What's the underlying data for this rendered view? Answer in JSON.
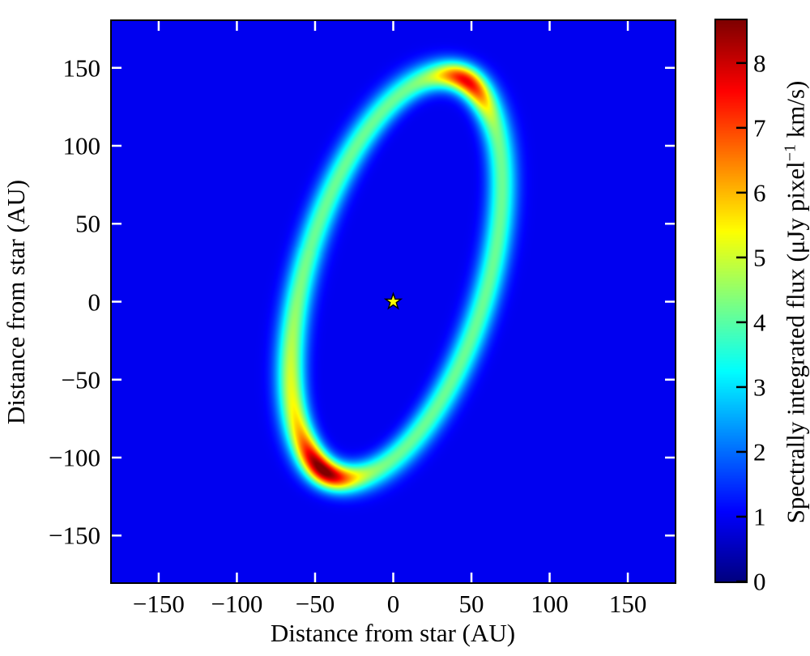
{
  "chart_data": {
    "type": "heatmap",
    "xlabel": "Distance from star (AU)",
    "ylabel": "Distance from star (AU)",
    "xlim": [
      -180,
      180
    ],
    "ylim": [
      -180,
      180
    ],
    "xticks": [
      "−150",
      "−100",
      "−50",
      "0",
      "50",
      "100",
      "150"
    ],
    "xtick_values": [
      -150,
      -100,
      -50,
      0,
      50,
      100,
      150
    ],
    "yticks": [
      "150",
      "100",
      "50",
      "0",
      "−50",
      "−100",
      "−150"
    ],
    "ytick_values": [
      150,
      100,
      50,
      0,
      -50,
      -100,
      -150
    ],
    "colormap": "jet",
    "clim": [
      0,
      8.66
    ],
    "colorbar": {
      "label_main": "Spectrally integrated flux (μJy pixel",
      "label_sup": "−1",
      "label_end": " km/s)",
      "ticks": [
        "0",
        "1",
        "2",
        "3",
        "4",
        "5",
        "6",
        "7",
        "8"
      ],
      "tick_values": [
        0,
        1,
        2,
        3,
        4,
        5,
        6,
        7,
        8
      ]
    },
    "background_color": "#00007f",
    "star_marker": {
      "x": 0,
      "y": 0,
      "color": "#ffff00"
    },
    "ring": {
      "center_au": [
        2,
        16
      ],
      "semi_major_au": 134,
      "semi_minor_au": 58,
      "major_axis_tilt_from_vertical_deg": 16.7,
      "width_sigma_au": 6.5,
      "side_flux": 3.6,
      "top_peak_flux": 7.6,
      "bottom_peak_flux": 8.66
    }
  }
}
